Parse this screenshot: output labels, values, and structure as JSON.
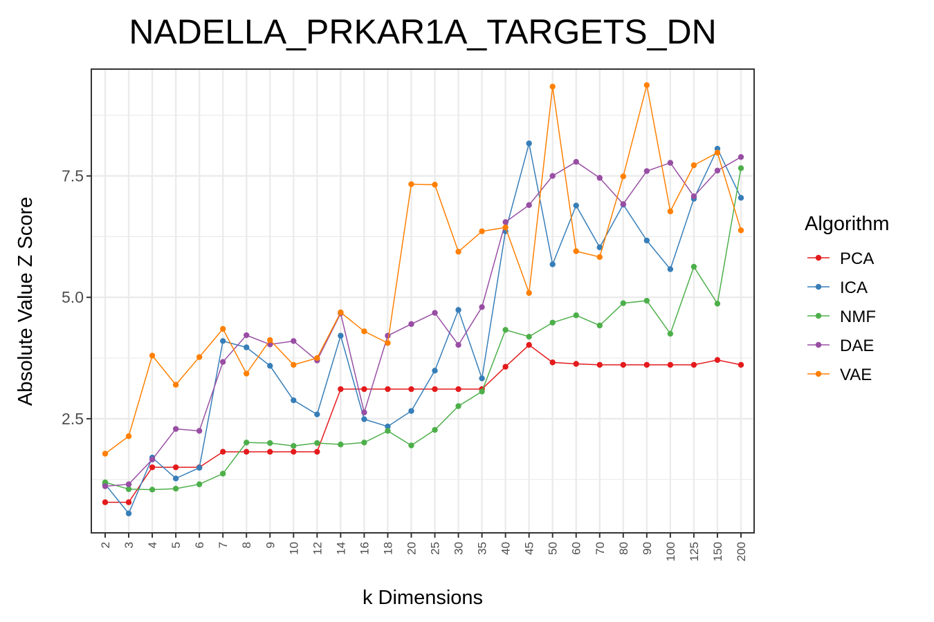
{
  "chart_data": {
    "type": "line",
    "title": "NADELLA_PRKAR1A_TARGETS_DN",
    "xlabel": "k Dimensions",
    "ylabel": "Absolute Value Z Score",
    "categories": [
      "2",
      "3",
      "4",
      "5",
      "6",
      "7",
      "8",
      "9",
      "10",
      "12",
      "14",
      "16",
      "18",
      "20",
      "25",
      "30",
      "35",
      "40",
      "45",
      "50",
      "60",
      "70",
      "80",
      "90",
      "100",
      "125",
      "150",
      "200"
    ],
    "ylim": [
      0.15,
      9.7
    ],
    "yticks": [
      2.5,
      5.0,
      7.5
    ],
    "ytick_labels": [
      "2.5",
      "5.0",
      "7.5"
    ],
    "grid": true,
    "legend": {
      "title": "Algorithm",
      "position": "right"
    },
    "series": [
      {
        "name": "PCA",
        "color": "#e41a1c",
        "values": [
          0.78,
          0.78,
          1.5,
          1.5,
          1.5,
          1.82,
          1.82,
          1.82,
          1.82,
          1.82,
          3.11,
          3.11,
          3.11,
          3.11,
          3.11,
          3.11,
          3.11,
          3.57,
          4.02,
          3.66,
          3.63,
          3.61,
          3.61,
          3.61,
          3.61,
          3.61,
          3.71,
          3.61
        ]
      },
      {
        "name": "ICA",
        "color": "#377eb8",
        "values": [
          1.15,
          0.55,
          1.7,
          1.27,
          1.49,
          4.1,
          3.97,
          3.59,
          2.88,
          2.59,
          4.21,
          2.49,
          2.34,
          2.66,
          3.49,
          4.74,
          3.33,
          6.36,
          8.17,
          5.68,
          6.89,
          6.03,
          6.91,
          6.17,
          5.58,
          7.03,
          8.06,
          7.05
        ]
      },
      {
        "name": "NMF",
        "color": "#4daf4a",
        "values": [
          1.19,
          1.05,
          1.04,
          1.06,
          1.15,
          1.37,
          2.01,
          2.0,
          1.94,
          2.0,
          1.97,
          2.01,
          2.25,
          1.95,
          2.27,
          2.76,
          3.06,
          4.33,
          4.19,
          4.48,
          4.63,
          4.42,
          4.88,
          4.93,
          4.25,
          5.63,
          4.87,
          7.66
        ]
      },
      {
        "name": "DAE",
        "color": "#984ea3",
        "values": [
          1.11,
          1.15,
          1.66,
          2.29,
          2.25,
          3.67,
          4.22,
          4.03,
          4.1,
          3.7,
          4.67,
          2.63,
          4.21,
          4.45,
          4.68,
          4.02,
          4.8,
          6.55,
          6.9,
          7.5,
          7.79,
          7.46,
          6.92,
          7.6,
          7.77,
          7.08,
          7.61,
          7.89
        ]
      },
      {
        "name": "VAE",
        "color": "#ff7f00",
        "values": [
          1.78,
          2.14,
          3.8,
          3.2,
          3.77,
          4.35,
          3.43,
          4.12,
          3.61,
          3.75,
          4.69,
          4.3,
          4.06,
          7.33,
          7.32,
          5.94,
          6.36,
          6.44,
          5.09,
          9.34,
          5.95,
          5.83,
          7.49,
          9.37,
          6.77,
          7.72,
          7.98,
          6.38
        ]
      }
    ]
  }
}
